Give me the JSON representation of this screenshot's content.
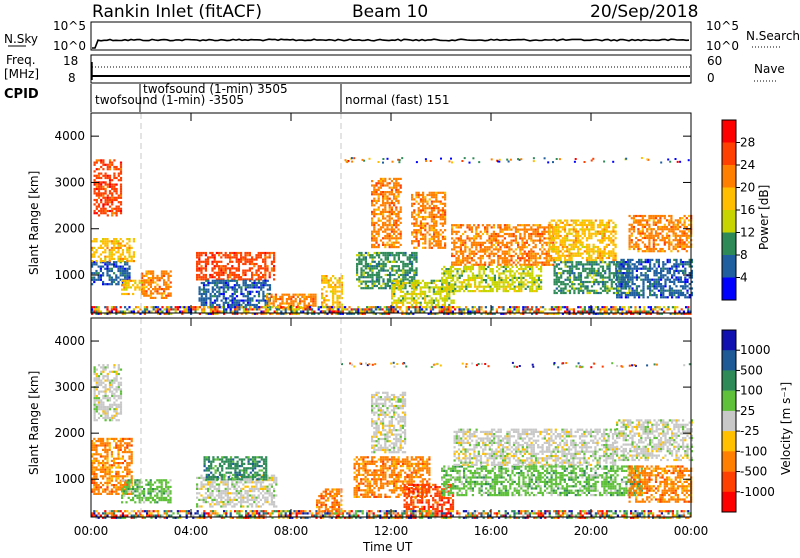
{
  "header": {
    "station": "Rankin Inlet (fitACF)",
    "beam": "Beam 10",
    "date": "20/Sep/2018"
  },
  "top_panels": {
    "nsky_label": "N.Sky",
    "nsky_ticks": [
      "10^5",
      "10^0"
    ],
    "nsearch_label": "N.Search",
    "nsearch_ticks": [
      "10^5",
      "10^0"
    ],
    "freq_label": "Freq.",
    "freq_unit": "[MHz]",
    "freq_ticks": [
      "18",
      "8"
    ],
    "nave_label": "Nave",
    "nave_ticks": [
      "60",
      "0"
    ],
    "cpid_label": "CPID",
    "cpid_segments": [
      {
        "text": "twofsound (1-min) -3505"
      },
      {
        "text": "twofsound (1-min) 3505"
      },
      {
        "text": "normal (fast) 151"
      }
    ]
  },
  "chart_data": [
    {
      "type": "heatmap",
      "name": "power",
      "ylabel": "Slant Range [km]",
      "xlabel": "",
      "ylim": [
        180,
        4500
      ],
      "xlim": [
        0,
        24
      ],
      "x_ticks": [
        "00:00",
        "04:00",
        "08:00",
        "12:00",
        "16:00",
        "20:00",
        "00:00"
      ],
      "y_ticks": [
        1000,
        2000,
        3000,
        4000
      ],
      "colorbar": {
        "label": "Power [dB]",
        "ticks": [
          "28",
          "24",
          "20",
          "16",
          "12",
          "8",
          "4"
        ],
        "colors": [
          "#ff0000",
          "#ff4000",
          "#ff8000",
          "#ffbf00",
          "#c8d400",
          "#2e8b57",
          "#1f5f9f",
          "#0000ff"
        ]
      },
      "cpid_dividers_hours": [
        2.0,
        10.0
      ],
      "regions": [
        {
          "t0": 0.0,
          "t1": 1.5,
          "r0": 800,
          "r1": 1300,
          "level": 6
        },
        {
          "t0": 0.0,
          "t1": 1.7,
          "r0": 1300,
          "r1": 1800,
          "level": 3
        },
        {
          "t0": 0.1,
          "t1": 1.2,
          "r0": 2300,
          "r1": 3500,
          "level": 1
        },
        {
          "t0": 1.2,
          "t1": 2.1,
          "r0": 600,
          "r1": 900,
          "level": 3
        },
        {
          "t0": 2.0,
          "t1": 3.2,
          "r0": 500,
          "r1": 1100,
          "level": 2
        },
        {
          "t0": 4.2,
          "t1": 7.3,
          "r0": 900,
          "r1": 1500,
          "level": 1
        },
        {
          "t0": 4.3,
          "t1": 7.2,
          "r0": 300,
          "r1": 900,
          "level": 6
        },
        {
          "t0": 7.0,
          "t1": 9.0,
          "r0": 300,
          "r1": 600,
          "level": 2
        },
        {
          "t0": 9.2,
          "t1": 10.0,
          "r0": 200,
          "r1": 1000,
          "level": 3
        },
        {
          "t0": 10.6,
          "t1": 13.0,
          "r0": 700,
          "r1": 1500,
          "level": 5
        },
        {
          "t0": 11.2,
          "t1": 12.4,
          "r0": 1600,
          "r1": 3100,
          "level": 2
        },
        {
          "t0": 12.8,
          "t1": 14.2,
          "r0": 1600,
          "r1": 2800,
          "level": 2
        },
        {
          "t0": 12.0,
          "t1": 14.5,
          "r0": 300,
          "r1": 900,
          "level": 4
        },
        {
          "t0": 14.4,
          "t1": 18.5,
          "r0": 1200,
          "r1": 2100,
          "level": 2
        },
        {
          "t0": 14.0,
          "t1": 18.0,
          "r0": 650,
          "r1": 1200,
          "level": 4
        },
        {
          "t0": 18.3,
          "t1": 21.0,
          "r0": 1300,
          "r1": 2200,
          "level": 3
        },
        {
          "t0": 18.5,
          "t1": 21.5,
          "r0": 600,
          "r1": 1300,
          "level": 5
        },
        {
          "t0": 21.0,
          "t1": 24.0,
          "r0": 500,
          "r1": 1350,
          "level": 6
        },
        {
          "t0": 21.5,
          "t1": 24.0,
          "r0": 1500,
          "r1": 2300,
          "level": 2
        },
        {
          "t0": 0.0,
          "t1": 24.0,
          "r0": 180,
          "r1": 330,
          "level": 0
        }
      ]
    },
    {
      "type": "heatmap",
      "name": "velocity",
      "ylabel": "Slant Range [km]",
      "xlabel": "Time UT",
      "ylim": [
        180,
        4500
      ],
      "xlim": [
        0,
        24
      ],
      "x_ticks": [
        "00:00",
        "04:00",
        "08:00",
        "12:00",
        "16:00",
        "20:00",
        "00:00"
      ],
      "y_ticks": [
        1000,
        2000,
        3000,
        4000
      ],
      "colorbar": {
        "label": "Velocity [m s⁻¹]",
        "ticks": [
          "1000",
          "500",
          "100",
          "25",
          "-25",
          "-100",
          "-500",
          "-1000"
        ],
        "colors": [
          "#1010b0",
          "#1e5a96",
          "#2e8b57",
          "#5fc03a",
          "#c8c8c8",
          "#ffc000",
          "#ff8000",
          "#ff4000",
          "#ff0000"
        ]
      },
      "cpid_dividers_hours": [
        2.0,
        10.0
      ],
      "regions": [
        {
          "t0": 0.0,
          "t1": 1.6,
          "r0": 700,
          "r1": 1900,
          "level": 6
        },
        {
          "t0": 0.1,
          "t1": 1.2,
          "r0": 2300,
          "r1": 3500,
          "level": 4
        },
        {
          "t0": 1.2,
          "t1": 3.2,
          "r0": 500,
          "r1": 1000,
          "level": 3
        },
        {
          "t0": 4.2,
          "t1": 7.4,
          "r0": 400,
          "r1": 1100,
          "level": 4
        },
        {
          "t0": 4.5,
          "t1": 7.0,
          "r0": 1000,
          "r1": 1500,
          "level": 2
        },
        {
          "t0": 9.0,
          "t1": 10.0,
          "r0": 200,
          "r1": 800,
          "level": 6
        },
        {
          "t0": 10.5,
          "t1": 13.5,
          "r0": 600,
          "r1": 1500,
          "level": 6
        },
        {
          "t0": 11.2,
          "t1": 12.6,
          "r0": 1600,
          "r1": 2900,
          "level": 4
        },
        {
          "t0": 12.5,
          "t1": 14.5,
          "r0": 200,
          "r1": 900,
          "level": 7
        },
        {
          "t0": 14.0,
          "t1": 17.5,
          "r0": 650,
          "r1": 1300,
          "level": 3
        },
        {
          "t0": 14.5,
          "t1": 21.0,
          "r0": 1300,
          "r1": 2100,
          "level": 4
        },
        {
          "t0": 17.5,
          "t1": 22.0,
          "r0": 650,
          "r1": 1300,
          "level": 3
        },
        {
          "t0": 21.0,
          "t1": 24.0,
          "r0": 1400,
          "r1": 2300,
          "level": 4
        },
        {
          "t0": 21.5,
          "t1": 24.0,
          "r0": 500,
          "r1": 1300,
          "level": 6
        },
        {
          "t0": 0.0,
          "t1": 24.0,
          "r0": 180,
          "r1": 330,
          "level": 8
        }
      ]
    }
  ]
}
